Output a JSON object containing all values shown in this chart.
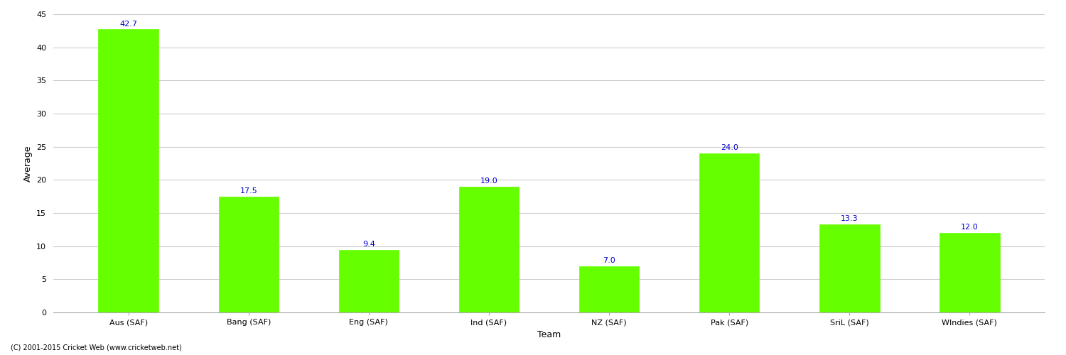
{
  "categories": [
    "Aus (SAF)",
    "Bang (SAF)",
    "Eng (SAF)",
    "Ind (SAF)",
    "NZ (SAF)",
    "Pak (SAF)",
    "SriL (SAF)",
    "WIndies (SAF)"
  ],
  "values": [
    42.7,
    17.5,
    9.4,
    19.0,
    7.0,
    24.0,
    13.3,
    12.0
  ],
  "bar_color": "#66FF00",
  "bar_edge_color": "#66FF00",
  "value_color": "#0000CC",
  "xlabel": "Team",
  "ylabel": "Average",
  "ylim": [
    0,
    45
  ],
  "yticks": [
    0,
    5,
    10,
    15,
    20,
    25,
    30,
    35,
    40,
    45
  ],
  "grid_color": "#cccccc",
  "background_color": "#ffffff",
  "footer": "(C) 2001-2015 Cricket Web (www.cricketweb.net)",
  "label_fontsize": 9,
  "tick_fontsize": 8,
  "value_fontsize": 8,
  "bar_width": 0.5
}
